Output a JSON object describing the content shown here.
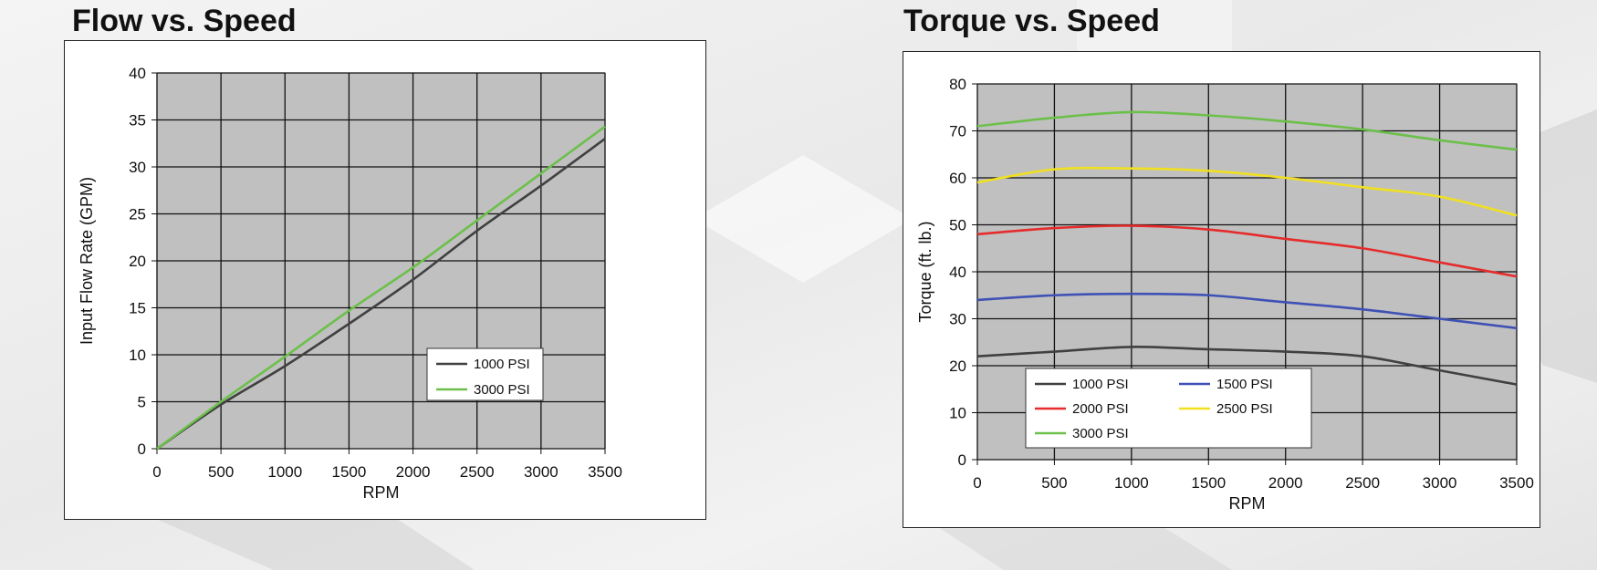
{
  "chart_data": [
    {
      "type": "line",
      "title": "Flow vs. Speed",
      "xlabel": "RPM",
      "ylabel": "Input Flow Rate (GPM)",
      "xlim": [
        0,
        3500
      ],
      "ylim": [
        0,
        40
      ],
      "xticks": [
        0,
        500,
        1000,
        1500,
        2000,
        2500,
        3000,
        3500
      ],
      "yticks": [
        0,
        5,
        10,
        15,
        20,
        25,
        30,
        35,
        40
      ],
      "grid": true,
      "legend": "lower-right",
      "x": [
        0,
        500,
        1000,
        1500,
        2000,
        2500,
        3000,
        3500
      ],
      "series": [
        {
          "name": "1000 PSI",
          "color": "#404040",
          "values": [
            0,
            4.7,
            8.8,
            13.3,
            18.0,
            23.2,
            28.0,
            33.0
          ]
        },
        {
          "name": "3000 PSI",
          "color": "#6cc04a",
          "values": [
            0,
            5.0,
            9.8,
            14.7,
            19.3,
            24.3,
            29.3,
            34.3
          ]
        }
      ]
    },
    {
      "type": "line",
      "title": "Torque vs. Speed",
      "xlabel": "RPM",
      "ylabel": "Torque (ft. lb.)",
      "xlim": [
        0,
        3500
      ],
      "ylim": [
        0,
        80
      ],
      "xticks": [
        0,
        500,
        1000,
        1500,
        2000,
        2500,
        3000,
        3500
      ],
      "yticks": [
        0,
        10,
        20,
        30,
        40,
        50,
        60,
        70,
        80
      ],
      "grid": true,
      "legend": "lower-left",
      "x": [
        0,
        500,
        1000,
        1500,
        2000,
        2500,
        3000,
        3500
      ],
      "series": [
        {
          "name": "1000 PSI",
          "color": "#404040",
          "values": [
            22,
            23,
            24,
            23.5,
            23,
            22,
            19,
            16
          ]
        },
        {
          "name": "1500 PSI",
          "color": "#3f51b5",
          "values": [
            34,
            35,
            35.3,
            35,
            33.5,
            32,
            30,
            28
          ]
        },
        {
          "name": "2000 PSI",
          "color": "#e52b2b",
          "values": [
            48,
            49.3,
            49.8,
            49,
            47,
            45,
            42,
            39
          ]
        },
        {
          "name": "2500 PSI",
          "color": "#f0e020",
          "values": [
            59,
            61.8,
            62,
            61.5,
            60,
            58,
            56,
            52
          ]
        },
        {
          "name": "3000 PSI",
          "color": "#6cc04a",
          "values": [
            71,
            72.8,
            74,
            73.3,
            72,
            70.3,
            68,
            66
          ]
        }
      ]
    }
  ]
}
